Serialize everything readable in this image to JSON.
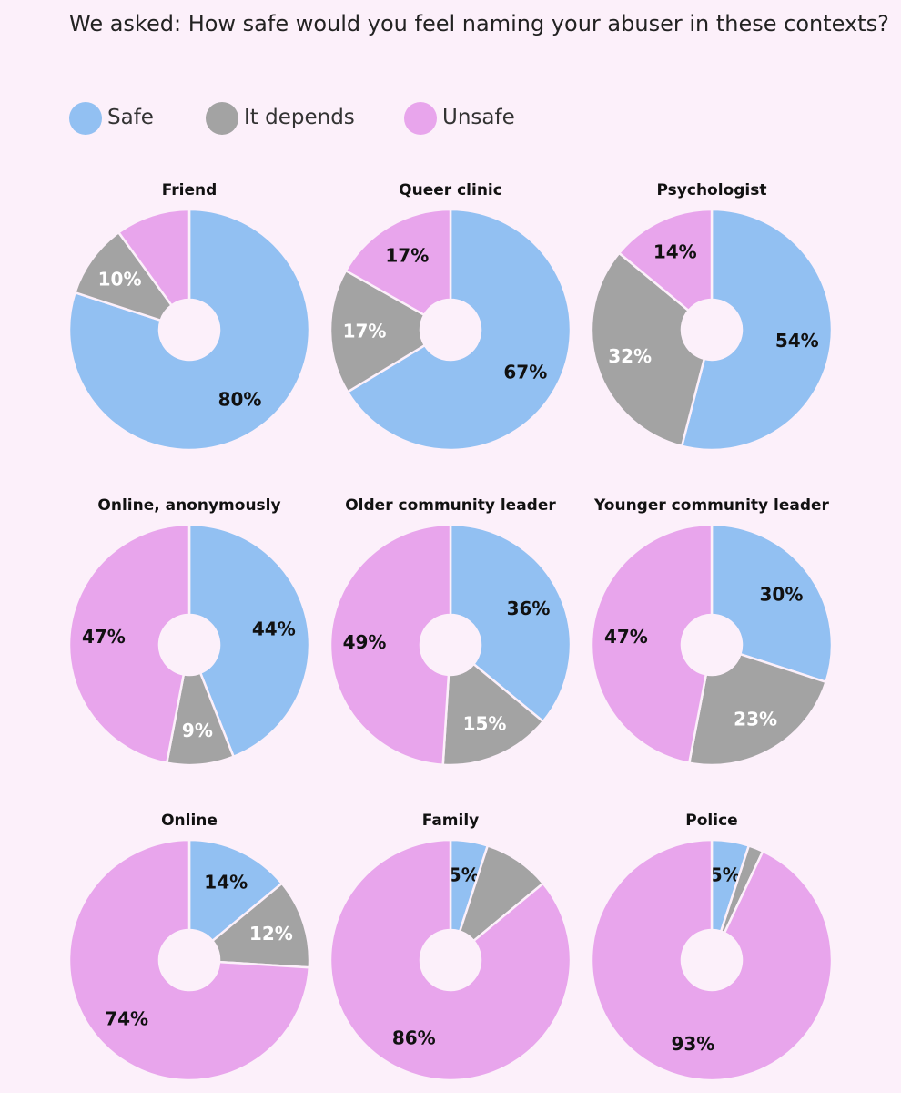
{
  "title": "We asked: How safe would you feel naming your abuser in these contexts?",
  "legend": [
    {
      "label": "Safe",
      "color": "#92c0f2",
      "icon": "circle-swatch"
    },
    {
      "label": "It depends",
      "color": "#a3a3a3",
      "icon": "circle-swatch"
    },
    {
      "label": "Unsafe",
      "color": "#e8a5ec",
      "icon": "circle-swatch"
    }
  ],
  "chart_data": {
    "type": "pie",
    "variant": "donut",
    "series_order": [
      "Safe",
      "It depends",
      "Unsafe"
    ],
    "series_colors": {
      "Safe": "#92c0f2",
      "It depends": "#a3a3a3",
      "Unsafe": "#e8a5ec"
    },
    "label_colors": {
      "Safe": "#111111",
      "It depends": "#ffffff",
      "Unsafe": "#111111"
    },
    "legend_position": "top",
    "charts": [
      {
        "title": "Friend",
        "values": [
          80,
          10,
          10
        ],
        "labels": [
          "80%",
          "10%",
          ""
        ]
      },
      {
        "title": "Queer clinic",
        "values": [
          67,
          17,
          17
        ],
        "labels": [
          "67%",
          "17%",
          "17%"
        ]
      },
      {
        "title": "Psychologist",
        "values": [
          54,
          32,
          14
        ],
        "labels": [
          "54%",
          "32%",
          "14%"
        ]
      },
      {
        "title": "Online, anonymously",
        "values": [
          44,
          9,
          47
        ],
        "labels": [
          "44%",
          "9%",
          "47%"
        ]
      },
      {
        "title": "Older community leader",
        "values": [
          36,
          15,
          49
        ],
        "labels": [
          "36%",
          "15%",
          "49%"
        ]
      },
      {
        "title": "Younger community leader",
        "values": [
          30,
          23,
          47
        ],
        "labels": [
          "30%",
          "23%",
          "47%"
        ]
      },
      {
        "title": "Online",
        "values": [
          14,
          12,
          74
        ],
        "labels": [
          "14%",
          "12%",
          "74%"
        ]
      },
      {
        "title": "Family",
        "values": [
          5,
          9,
          86
        ],
        "labels": [
          "5%",
          "",
          "86%"
        ]
      },
      {
        "title": "Police",
        "values": [
          5,
          2,
          93
        ],
        "labels": [
          "5%",
          "",
          "93%"
        ]
      }
    ]
  }
}
